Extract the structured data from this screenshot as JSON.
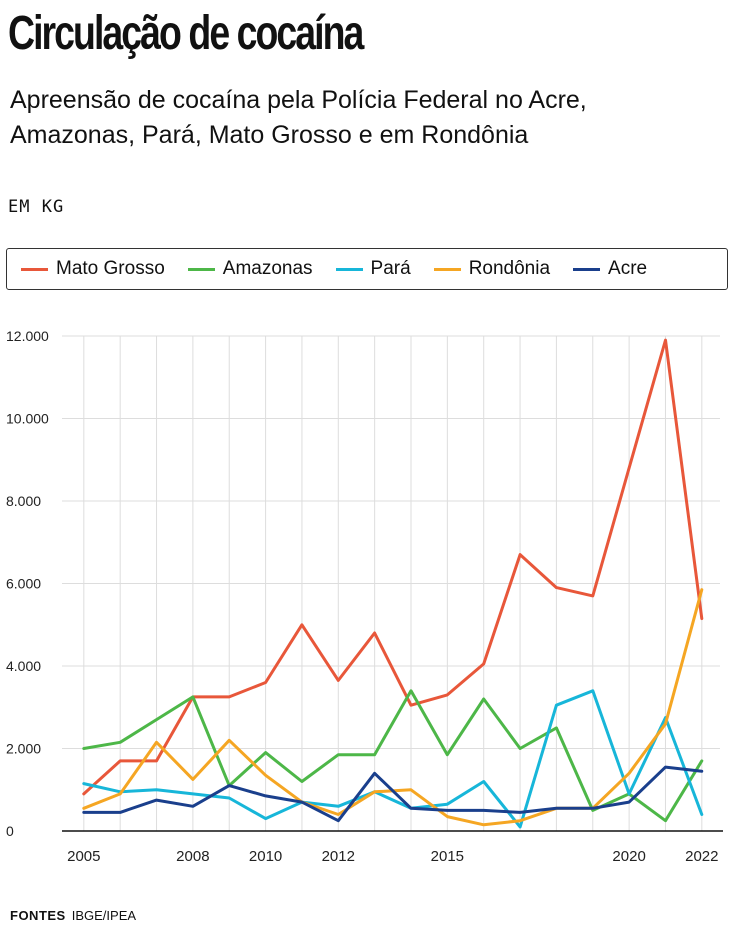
{
  "header": {
    "title": "Circulação de cocaína",
    "subtitle": "Apreensão de cocaína pela Polícia Federal no Acre, Amazonas, Pará, Mato Grosso e em Rondônia",
    "unit": "EM KG"
  },
  "footer": {
    "sources_label": "FONTES",
    "sources_value": "IBGE/IPEA"
  },
  "chart_data": {
    "type": "line",
    "title": "Circulação de cocaína",
    "subtitle": "Apreensão de cocaína pela Polícia Federal no Acre, Amazonas, Pará, Mato Grosso e em Rondônia",
    "ylabel": "EM KG",
    "x": [
      2005,
      2006,
      2007,
      2008,
      2009,
      2010,
      2011,
      2012,
      2013,
      2014,
      2015,
      2016,
      2017,
      2018,
      2019,
      2020,
      2021,
      2022
    ],
    "x_tick_labels": [
      "2005",
      "2008",
      "2010",
      "2012",
      "2015",
      "2020",
      "2022"
    ],
    "x_tick_values": [
      2005,
      2008,
      2010,
      2012,
      2015,
      2020,
      2022
    ],
    "y_tick_labels": [
      "0",
      "2.000",
      "4.000",
      "6.000",
      "8.000",
      "10.000",
      "12.000"
    ],
    "y_tick_values": [
      0,
      2000,
      4000,
      6000,
      8000,
      10000,
      12000
    ],
    "ylim": [
      0,
      12000
    ],
    "xlim": [
      2004.4,
      2022.5
    ],
    "grid": true,
    "legend_position": "top",
    "series": [
      {
        "name": "Mato Grosso",
        "color": "#e8573a",
        "values": [
          900,
          1700,
          1700,
          3250,
          3250,
          3600,
          5000,
          3650,
          4800,
          3050,
          3300,
          4050,
          6700,
          5900,
          5700,
          8800,
          11900,
          5150
        ]
      },
      {
        "name": "Amazonas",
        "color": "#4db748",
        "values": [
          2000,
          2150,
          2700,
          3250,
          1100,
          1900,
          1200,
          1850,
          1850,
          3400,
          1850,
          3200,
          2000,
          2500,
          500,
          900,
          250,
          1700
        ]
      },
      {
        "name": "Pará",
        "color": "#17b6d9",
        "values": [
          1150,
          950,
          1000,
          900,
          800,
          300,
          700,
          600,
          950,
          550,
          650,
          1200,
          100,
          3050,
          3400,
          900,
          2750,
          400
        ]
      },
      {
        "name": "Rondônia",
        "color": "#f5a623",
        "values": [
          550,
          900,
          2150,
          1250,
          2200,
          1350,
          700,
          400,
          950,
          1000,
          350,
          150,
          250,
          550,
          550,
          1400,
          2600,
          5850
        ]
      },
      {
        "name": "Acre",
        "color": "#1a3f8c",
        "values": [
          450,
          450,
          750,
          600,
          1100,
          850,
          700,
          250,
          1400,
          550,
          500,
          500,
          450,
          550,
          550,
          700,
          1550,
          1450
        ]
      }
    ]
  }
}
